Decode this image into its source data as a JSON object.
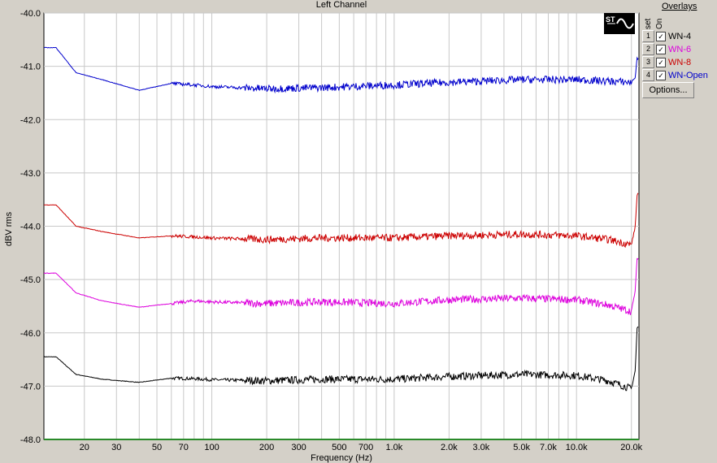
{
  "chart_data": {
    "type": "line",
    "title": "Left Channel",
    "xlabel": "Frequency (Hz)",
    "ylabel": "dBV rms",
    "xscale": "log",
    "xlim": [
      12,
      22000
    ],
    "ylim": [
      -48.0,
      -40.0
    ],
    "xticks": [
      20,
      30,
      50,
      70,
      100,
      200,
      300,
      500,
      700,
      1000,
      2000,
      3000,
      5000,
      7000,
      10000,
      20000
    ],
    "xtick_labels": [
      "20",
      "30",
      "50",
      "70",
      "100",
      "200",
      "300",
      "500",
      "700",
      "1.0k",
      "2.0k",
      "3.0k",
      "5.0k",
      "7.0k",
      "10.0k",
      "20.0k"
    ],
    "yticks": [
      -40.0,
      -41.0,
      -42.0,
      -43.0,
      -44.0,
      -45.0,
      -46.0,
      -47.0,
      -48.0
    ],
    "ytick_labels": [
      "-40.0",
      "-41.0",
      "-42.0",
      "-43.0",
      "-44.0",
      "-45.0",
      "-46.0",
      "-47.0",
      "-48.0"
    ],
    "grid": true,
    "series": [
      {
        "name": "WN-4",
        "color": "#000000",
        "x": [
          12,
          14,
          18,
          25,
          40,
          60,
          80,
          100,
          200,
          400,
          1000,
          2000,
          5000,
          10000,
          15000,
          20000,
          21000,
          21500
        ],
        "y": [
          -46.45,
          -46.45,
          -46.78,
          -46.87,
          -46.93,
          -46.85,
          -46.86,
          -46.88,
          -46.9,
          -46.87,
          -46.87,
          -46.82,
          -46.78,
          -46.8,
          -46.9,
          -47.05,
          -46.7,
          -45.9
        ]
      },
      {
        "name": "WN-6",
        "color": "#dd00dd",
        "x": [
          12,
          14,
          18,
          25,
          40,
          60,
          80,
          100,
          200,
          400,
          1000,
          2000,
          5000,
          10000,
          15000,
          20000,
          21000,
          21500
        ],
        "y": [
          -44.88,
          -44.88,
          -45.25,
          -45.4,
          -45.52,
          -45.45,
          -45.4,
          -45.42,
          -45.45,
          -45.42,
          -45.45,
          -45.38,
          -45.35,
          -45.38,
          -45.48,
          -45.6,
          -45.2,
          -44.6
        ]
      },
      {
        "name": "WN-8",
        "color": "#cc0000",
        "x": [
          12,
          14,
          18,
          25,
          40,
          60,
          80,
          100,
          200,
          400,
          1000,
          2000,
          5000,
          10000,
          15000,
          20000,
          21000,
          21500
        ],
        "y": [
          -43.6,
          -43.6,
          -44.0,
          -44.1,
          -44.22,
          -44.18,
          -44.2,
          -44.22,
          -44.25,
          -44.22,
          -44.22,
          -44.18,
          -44.15,
          -44.18,
          -44.25,
          -44.35,
          -44.0,
          -43.4
        ]
      },
      {
        "name": "WN-Open",
        "color": "#0000cc",
        "x": [
          12,
          14,
          18,
          25,
          40,
          60,
          80,
          100,
          200,
          400,
          1000,
          2000,
          5000,
          10000,
          15000,
          20000,
          21000,
          21500
        ],
        "y": [
          -40.65,
          -40.65,
          -41.12,
          -41.25,
          -41.45,
          -41.32,
          -41.35,
          -41.38,
          -41.42,
          -41.4,
          -41.35,
          -41.3,
          -41.25,
          -41.25,
          -41.28,
          -41.3,
          -41.2,
          -40.85
        ]
      }
    ]
  },
  "overlays": {
    "title": "Overlays",
    "set_label": "set",
    "on_label": "On",
    "options_label": "Options...",
    "items": [
      {
        "num": "1",
        "label": "WN-4",
        "color": "#000000",
        "checked": "✓"
      },
      {
        "num": "2",
        "label": "WN-6",
        "color": "#dd00dd",
        "checked": "✓"
      },
      {
        "num": "3",
        "label": "WN-8",
        "color": "#cc0000",
        "checked": "✓"
      },
      {
        "num": "4",
        "label": "WN-Open",
        "color": "#0000cc",
        "checked": "✓"
      }
    ]
  },
  "logo_text": "ST"
}
